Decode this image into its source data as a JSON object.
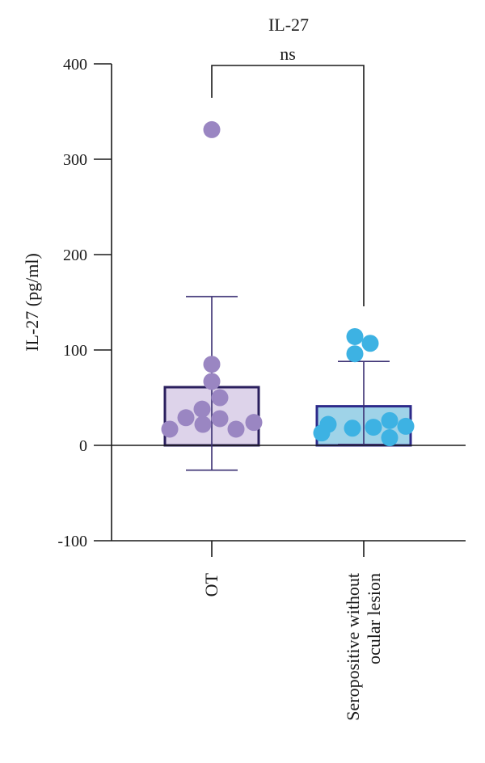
{
  "chart_data": {
    "type": "bar",
    "title": "IL-27",
    "ylabel": "IL-27 (pg/ml)",
    "xlabel": "",
    "ylim": [
      -100,
      400
    ],
    "yticks": [
      -100,
      0,
      100,
      200,
      300,
      400
    ],
    "categories": [
      "OT",
      "Seropositive without ocular lesion"
    ],
    "category_label_lines": [
      [
        "OT"
      ],
      [
        "Seropositive without",
        "ocular lesion"
      ]
    ],
    "bars": [
      {
        "mean": 61,
        "error_upper": 156,
        "error_lower": -26,
        "fill": "#ddd3ea",
        "edge": "#2a1f5e"
      },
      {
        "mean": 41,
        "error_upper": 88,
        "error_lower": 1,
        "fill": "#9fd3e8",
        "edge": "#2d2a8a"
      }
    ],
    "points": [
      {
        "color": "#9a86c2",
        "values": [
          331,
          85,
          67,
          50,
          38,
          29,
          28,
          24,
          22,
          17,
          17
        ]
      },
      {
        "color": "#3db2e3",
        "values": [
          114,
          107,
          96,
          26,
          22,
          20,
          19,
          18,
          13,
          8
        ]
      }
    ],
    "significance": {
      "label": "ns",
      "between": [
        0,
        1
      ]
    },
    "grid": false,
    "colors": {
      "axis": "#1a1a1a",
      "errorbar": "#3a2f72",
      "bracket": "#1a1a1a"
    }
  }
}
